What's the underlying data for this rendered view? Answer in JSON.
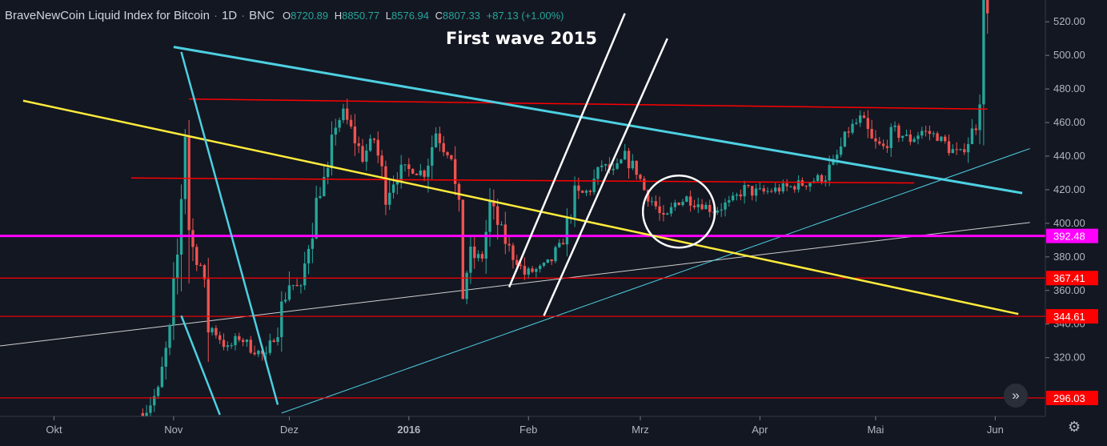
{
  "header": {
    "symbol": "BraveNewCoin Liquid Index for Bitcoin",
    "interval": "1D",
    "exchange": "BNC",
    "open_label": "O",
    "open": "8720.89",
    "high_label": "H",
    "high": "8850.77",
    "low_label": "L",
    "low": "8576.94",
    "close_label": "C",
    "close": "8807.33",
    "change": "+87.13 (+1.00%)"
  },
  "annotation_title": "First wave 2015",
  "colors": {
    "background": "#131722",
    "up_candle": "#26a69a",
    "down_candle": "#ef5350",
    "level_line": "#ff0000",
    "magenta_line": "#ff00ff",
    "cyan_line": "#4dd0e1",
    "yellow_line": "#ffeb3b",
    "white_line": "#ffffff"
  },
  "chart_data": {
    "type": "candlestick",
    "x_range": [
      "2015-09-17",
      "2016-06-14"
    ],
    "ylim": [
      286,
      532
    ],
    "y_ticks": [
      320,
      340,
      360,
      380,
      400,
      420,
      440,
      460,
      480,
      500,
      520
    ],
    "y_tick_labels": [
      "320.00",
      "340.00",
      "360.00",
      "380.00",
      "400.00",
      "420.00",
      "440.00",
      "460.00",
      "480.00",
      "500.00",
      "520.00"
    ],
    "x_ticks": [
      {
        "date": "2015-10-01",
        "label": "Okt"
      },
      {
        "date": "2015-11-01",
        "label": "Nov"
      },
      {
        "date": "2015-12-01",
        "label": "Dez"
      },
      {
        "date": "2016-01-01",
        "label": "2016"
      },
      {
        "date": "2016-02-01",
        "label": "Feb"
      },
      {
        "date": "2016-03-01",
        "label": "Mrz"
      },
      {
        "date": "2016-04-01",
        "label": "Apr"
      },
      {
        "date": "2016-05-01",
        "label": "Mai"
      },
      {
        "date": "2016-06-01",
        "label": "Jun"
      }
    ],
    "price_levels": [
      {
        "value": 392.48,
        "label": "392.48",
        "color": "magenta"
      },
      {
        "value": 367.41,
        "label": "367.41",
        "color": "red"
      },
      {
        "value": 344.61,
        "label": "344.61",
        "color": "red"
      },
      {
        "value": 296.03,
        "label": "296.03",
        "color": "red"
      }
    ],
    "anchors": [
      [
        "2015-10-24",
        287
      ],
      [
        "2015-10-28",
        300
      ],
      [
        "2015-10-31",
        335
      ],
      [
        "2015-11-02",
        380
      ],
      [
        "2015-11-03",
        420
      ],
      [
        "2015-11-04",
        460
      ],
      [
        "2015-11-05",
        400
      ],
      [
        "2015-11-06",
        385
      ],
      [
        "2015-11-08",
        375
      ],
      [
        "2015-11-10",
        340
      ],
      [
        "2015-11-12",
        335
      ],
      [
        "2015-11-15",
        325
      ],
      [
        "2015-11-18",
        332
      ],
      [
        "2015-11-22",
        325
      ],
      [
        "2015-11-25",
        320
      ],
      [
        "2015-11-28",
        340
      ],
      [
        "2015-12-01",
        365
      ],
      [
        "2015-12-04",
        360
      ],
      [
        "2015-12-06",
        390
      ],
      [
        "2015-12-09",
        420
      ],
      [
        "2015-12-11",
        430
      ],
      [
        "2015-12-13",
        460
      ],
      [
        "2015-12-15",
        465
      ],
      [
        "2015-12-17",
        455
      ],
      [
        "2015-12-20",
        440
      ],
      [
        "2015-12-23",
        450
      ],
      [
        "2015-12-26",
        420
      ],
      [
        "2015-12-29",
        430
      ],
      [
        "2016-01-02",
        432
      ],
      [
        "2016-01-05",
        430
      ],
      [
        "2016-01-08",
        455
      ],
      [
        "2016-01-10",
        445
      ],
      [
        "2016-01-12",
        440
      ],
      [
        "2016-01-14",
        400
      ],
      [
        "2016-01-15",
        365
      ],
      [
        "2016-01-17",
        380
      ],
      [
        "2016-01-20",
        380
      ],
      [
        "2016-01-22",
        410
      ],
      [
        "2016-01-24",
        400
      ],
      [
        "2016-01-27",
        385
      ],
      [
        "2016-01-31",
        370
      ],
      [
        "2016-02-04",
        373
      ],
      [
        "2016-02-07",
        378
      ],
      [
        "2016-02-10",
        390
      ],
      [
        "2016-02-13",
        415
      ],
      [
        "2016-02-17",
        420
      ],
      [
        "2016-02-20",
        435
      ],
      [
        "2016-02-23",
        430
      ],
      [
        "2016-02-26",
        440
      ],
      [
        "2016-02-29",
        432
      ],
      [
        "2016-03-02",
        420
      ],
      [
        "2016-03-05",
        410
      ],
      [
        "2016-03-07",
        400
      ],
      [
        "2016-03-10",
        412
      ],
      [
        "2016-03-13",
        415
      ],
      [
        "2016-03-16",
        412
      ],
      [
        "2016-03-20",
        408
      ],
      [
        "2016-03-24",
        412
      ],
      [
        "2016-03-28",
        420
      ],
      [
        "2016-04-01",
        418
      ],
      [
        "2016-04-05",
        420
      ],
      [
        "2016-04-10",
        422
      ],
      [
        "2016-04-14",
        425
      ],
      [
        "2016-04-18",
        428
      ],
      [
        "2016-04-21",
        440
      ],
      [
        "2016-04-24",
        455
      ],
      [
        "2016-04-27",
        462
      ],
      [
        "2016-04-30",
        448
      ],
      [
        "2016-05-03",
        445
      ],
      [
        "2016-05-06",
        455
      ],
      [
        "2016-05-10",
        450
      ],
      [
        "2016-05-13",
        455
      ],
      [
        "2016-05-17",
        452
      ],
      [
        "2016-05-20",
        445
      ],
      [
        "2016-05-23",
        440
      ],
      [
        "2016-05-25",
        450
      ],
      [
        "2016-05-27",
        458
      ],
      [
        "2016-05-28",
        485
      ],
      [
        "2016-05-29",
        530
      ],
      [
        "2016-05-30",
        532
      ]
    ]
  },
  "scroll_button_icon": "double-chevron-right-icon",
  "settings_icon": "gear-icon"
}
